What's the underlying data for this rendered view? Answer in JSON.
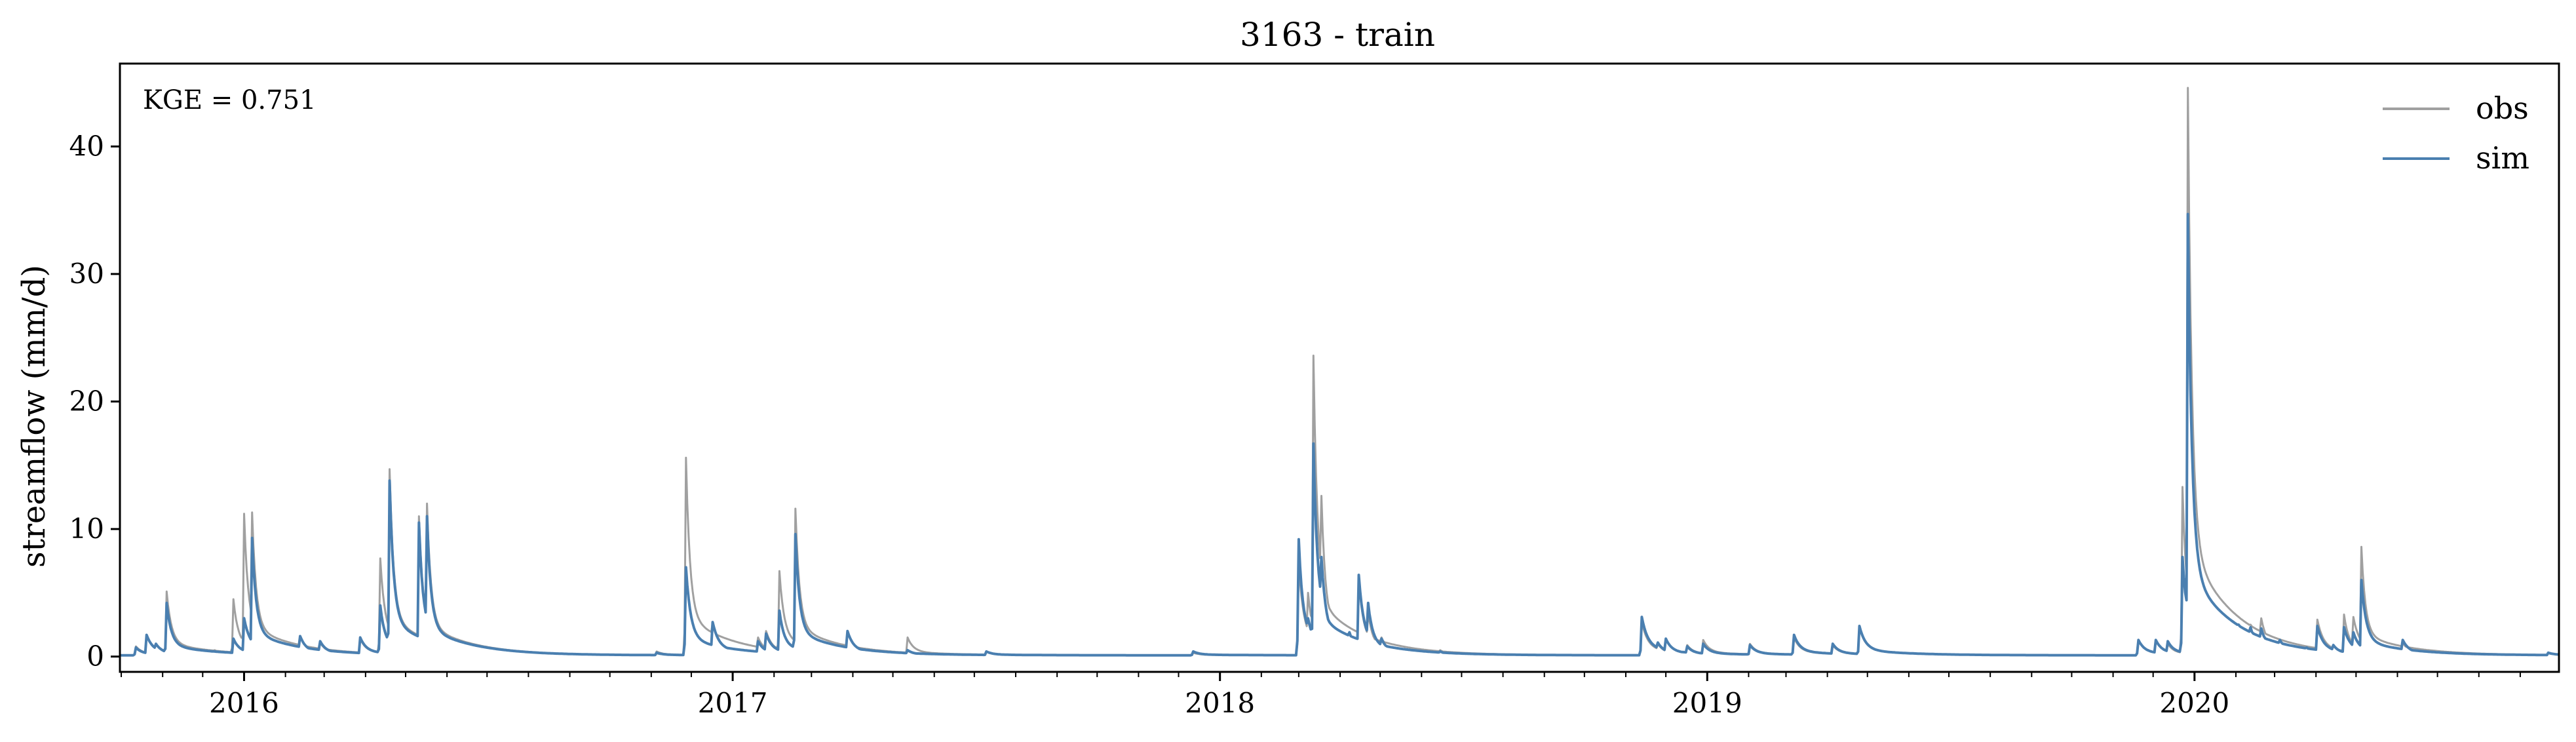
{
  "chart_data": {
    "type": "line",
    "title": "3163 - train",
    "ylabel": "streamflow (mm/d)",
    "xlabel": "",
    "xlim": [
      "2015-09-30",
      "2020-09-30"
    ],
    "ylim": [
      -1.2,
      46.5
    ],
    "yticks": [
      0,
      10,
      20,
      30,
      40
    ],
    "xticks": [
      {
        "date": "2016-01-01",
        "label": "2016"
      },
      {
        "date": "2017-01-01",
        "label": "2017"
      },
      {
        "date": "2018-01-01",
        "label": "2018"
      },
      {
        "date": "2019-01-01",
        "label": "2019"
      },
      {
        "date": "2020-01-01",
        "label": "2020"
      }
    ],
    "annotation": "KGE = 0.751",
    "legend_position": "top-right",
    "grid": false,
    "baseline": 0.1,
    "series": [
      {
        "name": "obs",
        "color": "#a0a0a0",
        "peaks": [
          [
            "2015-10-12",
            0.8
          ],
          [
            "2015-10-20",
            1.7
          ],
          [
            "2015-10-27",
            1.0
          ],
          [
            "2015-11-04",
            5.1
          ],
          [
            "2015-11-22",
            0.7
          ],
          [
            "2015-12-10",
            0.5
          ],
          [
            "2015-12-24",
            4.5
          ],
          [
            "2016-01-01",
            11.2
          ],
          [
            "2016-01-07",
            11.3
          ],
          [
            "2016-01-20",
            1.0
          ],
          [
            "2016-02-12",
            1.6
          ],
          [
            "2016-02-27",
            1.1
          ],
          [
            "2016-03-28",
            1.4
          ],
          [
            "2016-04-12",
            7.7
          ],
          [
            "2016-04-19",
            14.7
          ],
          [
            "2016-05-11",
            11.0
          ],
          [
            "2016-05-17",
            12.0
          ],
          [
            "2016-06-18",
            0.4
          ],
          [
            "2016-11-05",
            0.4
          ],
          [
            "2016-11-27",
            15.6
          ],
          [
            "2016-12-05",
            2.6
          ],
          [
            "2016-12-17",
            2.7
          ],
          [
            "2017-01-20",
            1.5
          ],
          [
            "2017-01-26",
            2.0
          ],
          [
            "2017-02-05",
            6.7
          ],
          [
            "2017-02-17",
            11.6
          ],
          [
            "2017-03-28",
            2.0
          ],
          [
            "2017-05-12",
            1.5
          ],
          [
            "2017-07-10",
            0.4
          ],
          [
            "2017-12-12",
            0.3
          ],
          [
            "2018-03-01",
            7.4
          ],
          [
            "2018-03-08",
            5.0
          ],
          [
            "2018-03-12",
            23.6
          ],
          [
            "2018-03-18",
            12.6
          ],
          [
            "2018-03-25",
            2.6
          ],
          [
            "2018-04-08",
            1.8
          ],
          [
            "2018-04-15",
            6.0
          ],
          [
            "2018-04-22",
            3.5
          ],
          [
            "2018-05-02",
            1.5
          ],
          [
            "2018-06-15",
            0.5
          ],
          [
            "2018-11-13",
            2.7
          ],
          [
            "2018-11-25",
            1.0
          ],
          [
            "2018-12-01",
            1.4
          ],
          [
            "2018-12-17",
            0.9
          ],
          [
            "2018-12-29",
            1.3
          ],
          [
            "2019-02-02",
            1.0
          ],
          [
            "2019-03-07",
            1.5
          ],
          [
            "2019-04-05",
            0.9
          ],
          [
            "2019-04-25",
            2.3
          ],
          [
            "2019-11-20",
            1.3
          ],
          [
            "2019-12-03",
            1.3
          ],
          [
            "2019-12-12",
            1.0
          ],
          [
            "2019-12-23",
            13.3
          ],
          [
            "2019-12-27",
            44.6
          ],
          [
            "2020-01-05",
            4.0
          ],
          [
            "2020-01-25",
            1.0
          ],
          [
            "2020-02-03",
            2.3
          ],
          [
            "2020-02-12",
            2.5
          ],
          [
            "2020-02-20",
            3.0
          ],
          [
            "2020-03-05",
            1.3
          ],
          [
            "2020-03-25",
            0.8
          ],
          [
            "2020-04-02",
            2.9
          ],
          [
            "2020-04-14",
            0.9
          ],
          [
            "2020-04-22",
            3.3
          ],
          [
            "2020-04-29",
            3.1
          ],
          [
            "2020-05-05",
            8.6
          ],
          [
            "2020-05-12",
            2.0
          ],
          [
            "2020-06-05",
            1.1
          ],
          [
            "2020-09-22",
            0.3
          ]
        ]
      },
      {
        "name": "sim",
        "color": "#4a7fb0",
        "peaks": [
          [
            "2015-10-12",
            0.7
          ],
          [
            "2015-10-20",
            1.7
          ],
          [
            "2015-10-27",
            1.0
          ],
          [
            "2015-11-04",
            4.2
          ],
          [
            "2015-11-22",
            0.6
          ],
          [
            "2015-12-10",
            0.4
          ],
          [
            "2015-12-24",
            1.4
          ],
          [
            "2016-01-01",
            3.0
          ],
          [
            "2016-01-07",
            9.3
          ],
          [
            "2016-01-20",
            1.0
          ],
          [
            "2016-02-12",
            1.6
          ],
          [
            "2016-02-27",
            1.2
          ],
          [
            "2016-03-28",
            1.5
          ],
          [
            "2016-04-12",
            4.0
          ],
          [
            "2016-04-19",
            13.8
          ],
          [
            "2016-05-11",
            10.5
          ],
          [
            "2016-05-17",
            11.0
          ],
          [
            "2016-06-18",
            0.4
          ],
          [
            "2016-11-05",
            0.3
          ],
          [
            "2016-11-27",
            7.0
          ],
          [
            "2016-12-05",
            0.8
          ],
          [
            "2016-12-17",
            2.7
          ],
          [
            "2017-01-20",
            1.2
          ],
          [
            "2017-01-26",
            1.8
          ],
          [
            "2017-02-05",
            3.6
          ],
          [
            "2017-02-17",
            9.6
          ],
          [
            "2017-03-28",
            2.0
          ],
          [
            "2017-05-12",
            0.5
          ],
          [
            "2017-07-10",
            0.4
          ],
          [
            "2017-12-12",
            0.4
          ],
          [
            "2018-03-01",
            9.2
          ],
          [
            "2018-03-08",
            3.0
          ],
          [
            "2018-03-12",
            16.7
          ],
          [
            "2018-03-18",
            7.8
          ],
          [
            "2018-03-25",
            2.3
          ],
          [
            "2018-04-08",
            1.9
          ],
          [
            "2018-04-15",
            6.4
          ],
          [
            "2018-04-22",
            4.2
          ],
          [
            "2018-05-02",
            1.4
          ],
          [
            "2018-06-15",
            0.4
          ],
          [
            "2018-11-13",
            3.1
          ],
          [
            "2018-11-25",
            1.1
          ],
          [
            "2018-12-01",
            1.4
          ],
          [
            "2018-12-17",
            0.8
          ],
          [
            "2018-12-29",
            1.0
          ],
          [
            "2019-02-02",
            0.9
          ],
          [
            "2019-03-07",
            1.7
          ],
          [
            "2019-04-05",
            1.0
          ],
          [
            "2019-04-25",
            2.4
          ],
          [
            "2019-11-20",
            1.3
          ],
          [
            "2019-12-03",
            1.3
          ],
          [
            "2019-12-12",
            1.2
          ],
          [
            "2019-12-23",
            7.8
          ],
          [
            "2019-12-27",
            34.7
          ],
          [
            "2020-01-05",
            2.5
          ],
          [
            "2020-01-25",
            0.9
          ],
          [
            "2020-02-03",
            2.5
          ],
          [
            "2020-02-12",
            2.3
          ],
          [
            "2020-02-20",
            2.2
          ],
          [
            "2020-03-05",
            1.3
          ],
          [
            "2020-03-25",
            0.7
          ],
          [
            "2020-04-02",
            2.4
          ],
          [
            "2020-04-14",
            0.9
          ],
          [
            "2020-04-22",
            2.3
          ],
          [
            "2020-04-29",
            1.9
          ],
          [
            "2020-05-05",
            6.0
          ],
          [
            "2020-05-12",
            1.5
          ],
          [
            "2020-06-05",
            1.3
          ],
          [
            "2020-09-22",
            0.3
          ]
        ]
      }
    ]
  }
}
